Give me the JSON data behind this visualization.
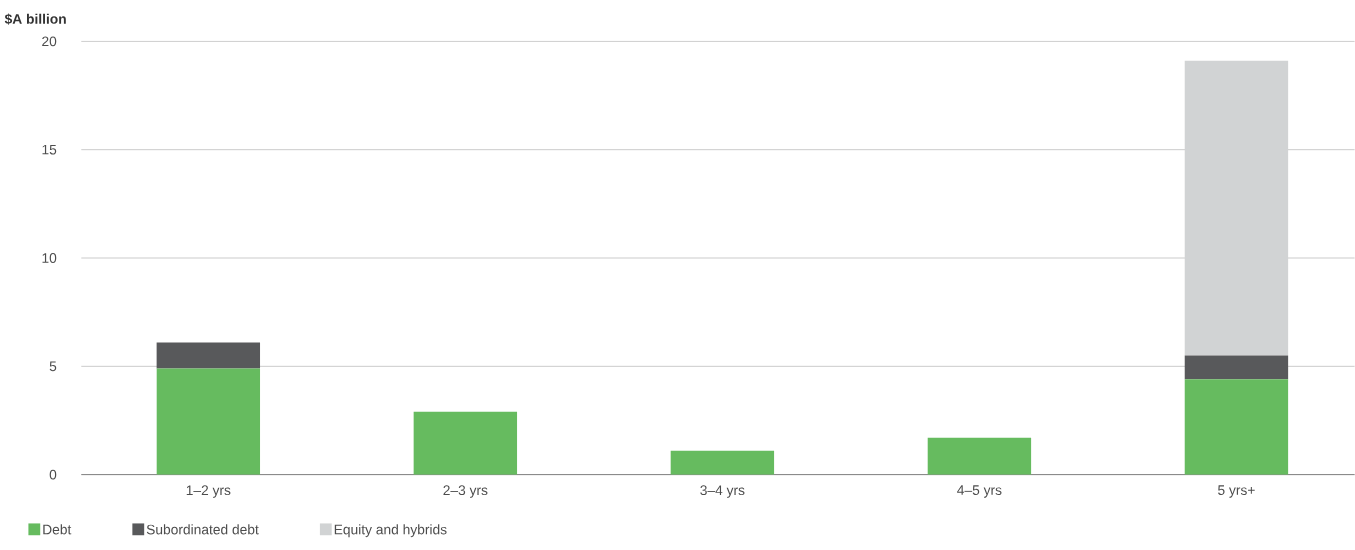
{
  "chart_data": {
    "type": "bar",
    "stacked": true,
    "ylabel": "$A billion",
    "categories": [
      "1–2 yrs",
      "2–3 yrs",
      "3–4 yrs",
      "4–5 yrs",
      "5 yrs+"
    ],
    "series": [
      {
        "name": "Debt",
        "color": "#66bb5f",
        "values": [
          4.9,
          2.9,
          1.1,
          1.7,
          4.4
        ]
      },
      {
        "name": "Subordinated debt",
        "color": "#58595b",
        "values": [
          1.2,
          0,
          0,
          0,
          1.1
        ]
      },
      {
        "name": "Equity and hybrids",
        "color": "#d1d3d4",
        "values": [
          0,
          0,
          0,
          0,
          13.6
        ]
      }
    ],
    "ylim": [
      0,
      20
    ],
    "yticks": [
      0,
      5,
      10,
      15,
      20
    ],
    "grid": "y",
    "legend": "bottom left"
  }
}
